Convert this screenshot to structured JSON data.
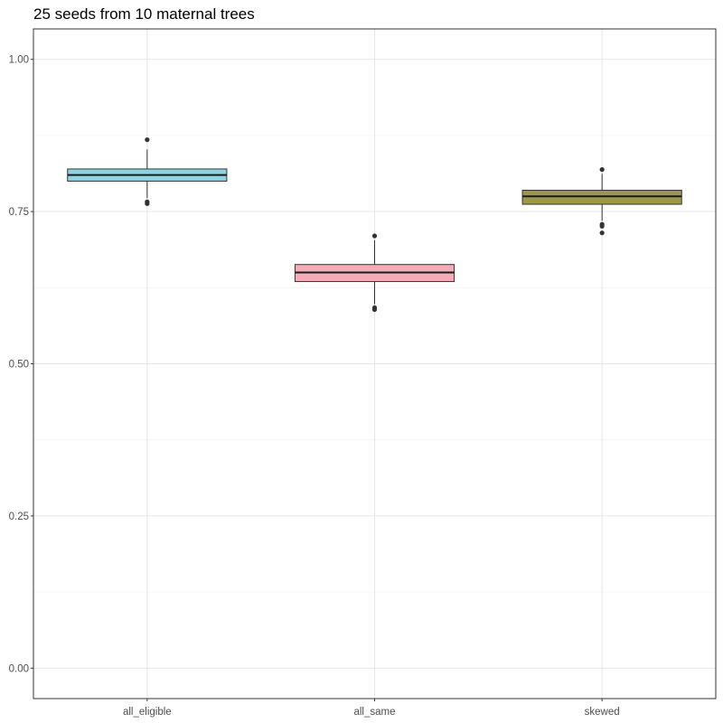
{
  "chart_data": {
    "type": "box",
    "title": "25 seeds from 10 maternal trees",
    "xlabel": "",
    "ylabel": "",
    "ylim": [
      -0.05,
      1.05
    ],
    "y_ticks": [
      0.0,
      0.25,
      0.5,
      0.75,
      1.0
    ],
    "y_tick_labels": [
      "0.00",
      "0.25",
      "0.50",
      "0.75",
      "1.00"
    ],
    "grid": true,
    "categories": [
      "all_eligible",
      "all_same",
      "skewed"
    ],
    "boxes": [
      {
        "category": "all_eligible",
        "whisker_low": 0.772,
        "q1": 0.8,
        "median": 0.81,
        "q3": 0.82,
        "whisker_high": 0.852,
        "outliers": [
          0.868,
          0.766,
          0.763
        ],
        "fill": "#8ed3e2"
      },
      {
        "category": "all_same",
        "whisker_low": 0.598,
        "q1": 0.635,
        "median": 0.65,
        "q3": 0.663,
        "whisker_high": 0.703,
        "outliers": [
          0.71,
          0.592,
          0.589
        ],
        "fill": "#f4adb7"
      },
      {
        "category": "skewed",
        "whisker_low": 0.735,
        "q1": 0.762,
        "median": 0.775,
        "q3": 0.785,
        "whisker_high": 0.812,
        "outliers": [
          0.819,
          0.729,
          0.726,
          0.715
        ],
        "fill": "#9d974a"
      }
    ]
  }
}
